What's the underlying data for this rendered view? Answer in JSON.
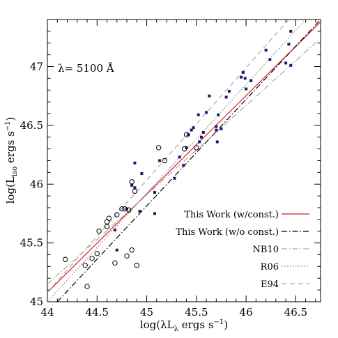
{
  "chart_data": {
    "type": "scatter",
    "annotation": "λ= 5100 Å",
    "xlabel": {
      "pre": "log(λL",
      "sub": "λ",
      "post": " ergs s",
      "sup": "−1",
      "close": ")"
    },
    "ylabel": {
      "pre": "log(L",
      "sub": "iso",
      "post": " ergs s",
      "sup": "−1",
      "close": ")"
    },
    "xlim": [
      44,
      46.75
    ],
    "ylim": [
      45,
      47.4
    ],
    "x_ticks": [
      "44",
      "44.5",
      "45",
      "45.5",
      "46",
      "46.5"
    ],
    "y_ticks": [
      "45",
      "45.5",
      "46",
      "46.5",
      "47"
    ],
    "x_tick_values": [
      44,
      44.5,
      45,
      45.5,
      46,
      46.5
    ],
    "y_tick_values": [
      45,
      45.5,
      46,
      46.5,
      47
    ],
    "grid": false,
    "legend_position": "bottom-right",
    "lines": [
      {
        "name": "This Work (w/const.)",
        "style": "solid",
        "color": "#d62020",
        "points": [
          [
            44,
            45.08
          ],
          [
            46.75,
            47.38
          ]
        ]
      },
      {
        "name": "This Work (w/o const.)",
        "style": "dashdot",
        "color": "#000000",
        "points": [
          [
            44.1,
            45.0
          ],
          [
            46.75,
            47.4
          ]
        ]
      },
      {
        "name": "NB10",
        "style": "dashdot",
        "color": "#a8a8a8",
        "points": [
          [
            44,
            45.15
          ],
          [
            46.75,
            47.24
          ]
        ]
      },
      {
        "name": "R06",
        "style": "dotted",
        "color": "#808080",
        "points": [
          [
            44,
            45.0
          ],
          [
            46.6,
            47.4
          ]
        ]
      },
      {
        "name": "E94",
        "style": "dashed",
        "color": "#a8a8a8",
        "points": [
          [
            44,
            45.08
          ],
          [
            46.43,
            47.4
          ]
        ]
      }
    ],
    "series": [
      {
        "name": "",
        "marker": "square",
        "color": "#1a1a6e",
        "points": [
          [
            44.68,
            45.61
          ],
          [
            44.7,
            45.44
          ],
          [
            44.8,
            45.79
          ],
          [
            44.85,
            45.99
          ],
          [
            44.88,
            46.18
          ],
          [
            44.88,
            45.97
          ],
          [
            44.93,
            45.77
          ],
          [
            44.95,
            46.09
          ],
          [
            45.08,
            45.75
          ],
          [
            45.08,
            45.93
          ],
          [
            45.13,
            46.2
          ],
          [
            45.28,
            46.05
          ],
          [
            45.33,
            46.23
          ],
          [
            45.37,
            46.16
          ],
          [
            45.4,
            46.31
          ],
          [
            45.42,
            46.42
          ],
          [
            45.45,
            46.46
          ],
          [
            45.47,
            46.48
          ],
          [
            45.52,
            46.59
          ],
          [
            45.53,
            46.36
          ],
          [
            45.55,
            46.4
          ],
          [
            45.57,
            46.44
          ],
          [
            45.6,
            46.61
          ],
          [
            45.63,
            46.75
          ],
          [
            45.7,
            46.49
          ],
          [
            45.7,
            46.46
          ],
          [
            45.72,
            46.59
          ],
          [
            45.71,
            46.36
          ],
          [
            45.75,
            46.47
          ],
          [
            45.8,
            46.74
          ],
          [
            45.83,
            46.79
          ],
          [
            45.95,
            46.91
          ],
          [
            45.97,
            46.95
          ],
          [
            45.99,
            46.9
          ],
          [
            46.0,
            46.81
          ],
          [
            46.05,
            46.88
          ],
          [
            46.2,
            47.14
          ],
          [
            46.24,
            47.06
          ],
          [
            46.4,
            47.03
          ],
          [
            46.43,
            47.19
          ],
          [
            46.45,
            47.01
          ],
          [
            46.45,
            47.3
          ]
        ]
      },
      {
        "name": "",
        "marker": "circle",
        "color": "#000000",
        "points": [
          [
            44.18,
            45.36
          ],
          [
            44.38,
            45.31
          ],
          [
            44.4,
            45.13
          ],
          [
            44.45,
            45.37
          ],
          [
            44.5,
            45.41
          ],
          [
            44.52,
            45.6
          ],
          [
            44.6,
            45.64
          ],
          [
            44.6,
            45.68
          ],
          [
            44.62,
            45.71
          ],
          [
            44.68,
            45.33
          ],
          [
            44.7,
            45.74
          ],
          [
            44.75,
            45.79
          ],
          [
            44.78,
            45.79
          ],
          [
            44.8,
            45.39
          ],
          [
            44.82,
            45.78
          ],
          [
            44.85,
            46.02
          ],
          [
            44.85,
            45.44
          ],
          [
            44.88,
            45.94
          ],
          [
            44.9,
            45.31
          ],
          [
            45.12,
            46.31
          ],
          [
            45.18,
            46.2
          ],
          [
            45.4,
            46.42
          ],
          [
            45.38,
            46.3
          ],
          [
            45.5,
            46.31
          ]
        ]
      }
    ]
  }
}
